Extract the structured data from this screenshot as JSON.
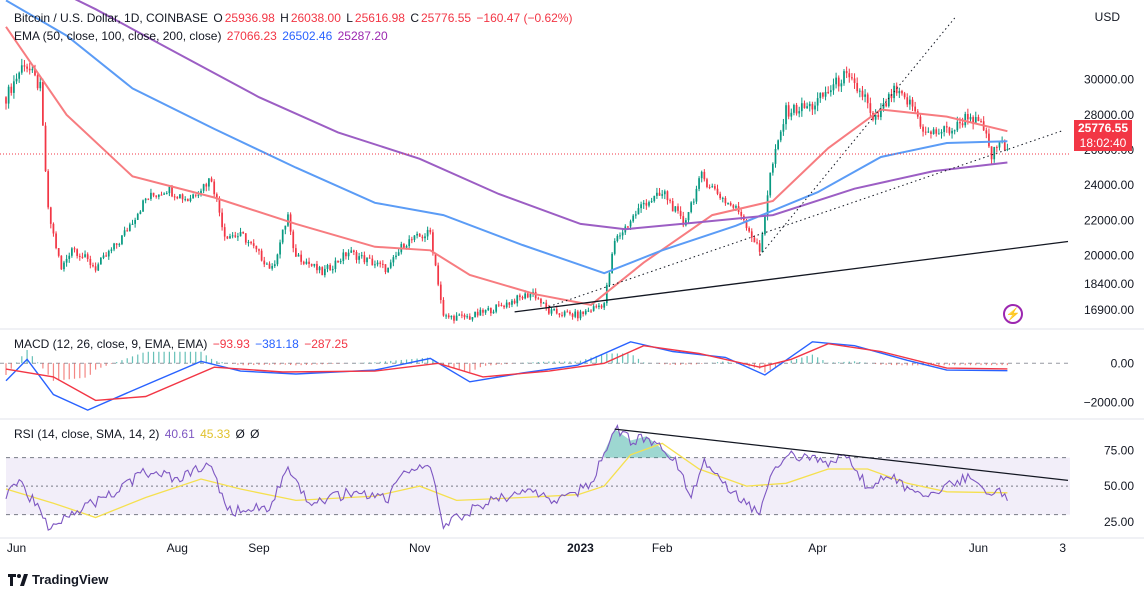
{
  "header": {
    "symbol": "Bitcoin / U.S. Dollar, 1D, COINBASE",
    "o_label": "O",
    "o_val": "25936.98",
    "h_label": "H",
    "h_val": "26038.00",
    "l_label": "L",
    "l_val": "25616.98",
    "c_label": "C",
    "c_val": "25776.55",
    "change": "−160.47 (−0.62%)"
  },
  "ema_legend": {
    "label": "EMA (50, close, 100, close, 200, close)",
    "v50": "27066.23",
    "v100": "26502.46",
    "v200": "25287.20"
  },
  "macd_legend": {
    "label": "MACD (12, 26, close, 9, EMA, EMA)",
    "hist": "−93.93",
    "macd": "−381.18",
    "signal": "−287.25"
  },
  "rsi_legend": {
    "label": "RSI (14, close, SMA, 14, 2)",
    "rsi": "40.61",
    "sma": "45.33",
    "x1": "Ø",
    "x2": "Ø"
  },
  "price_axis": {
    "unit": "USD",
    "current_price": "25776.55",
    "countdown": "18:02:40"
  },
  "branding": {
    "name": "TradingView"
  },
  "colors": {
    "up": "#089981",
    "down": "#f23645",
    "ema50": "#f77c80",
    "ema100": "#5b9cf6",
    "ema200": "#9c5ec4",
    "macd": "#2962ff",
    "signal": "#f23645",
    "rsi": "#7e57c2",
    "rsi_sma": "#f5e04f"
  },
  "chart_data": [
    {
      "type": "candlestick",
      "title": "Bitcoin / U.S. Dollar, 1D, COINBASE",
      "ylabel": "USD",
      "ylim": [
        16000,
        33500
      ],
      "y_ticks": [
        16900,
        18400,
        20000,
        22000,
        24000,
        26000,
        28000,
        30000
      ],
      "y_tick_labels": [
        "16900.00",
        "18400.00",
        "20000.00",
        "22000.00",
        "24000.00",
        "26000.00",
        "28000.00",
        "30000.00"
      ],
      "x_tick_labels": [
        "Jun",
        "Aug",
        "Sep",
        "Nov",
        "2023",
        "Feb",
        "Apr",
        "Jun",
        "3"
      ],
      "close_path": [
        [
          "2022-05-28",
          29000
        ],
        [
          "2022-06-04",
          31000
        ],
        [
          "2022-06-10",
          29500
        ],
        [
          "2022-06-13",
          22500
        ],
        [
          "2022-06-18",
          19200
        ],
        [
          "2022-06-22",
          20500
        ],
        [
          "2022-07-01",
          19300
        ],
        [
          "2022-07-10",
          20800
        ],
        [
          "2022-07-20",
          23200
        ],
        [
          "2022-07-28",
          23800
        ],
        [
          "2022-08-05",
          23200
        ],
        [
          "2022-08-14",
          24400
        ],
        [
          "2022-08-19",
          21200
        ],
        [
          "2022-08-26",
          21100
        ],
        [
          "2022-09-06",
          19200
        ],
        [
          "2022-09-12",
          22300
        ],
        [
          "2022-09-14",
          20200
        ],
        [
          "2022-09-25",
          19000
        ],
        [
          "2022-10-05",
          20200
        ],
        [
          "2022-10-20",
          19200
        ],
        [
          "2022-10-26",
          20700
        ],
        [
          "2022-11-05",
          21300
        ],
        [
          "2022-11-08",
          18500
        ],
        [
          "2022-11-10",
          16500
        ],
        [
          "2022-11-20",
          16500
        ],
        [
          "2022-12-01",
          17100
        ],
        [
          "2022-12-14",
          17900
        ],
        [
          "2022-12-20",
          16800
        ],
        [
          "2022-12-31",
          16600
        ],
        [
          "2023-01-10",
          17300
        ],
        [
          "2023-01-14",
          20800
        ],
        [
          "2023-01-25",
          23000
        ],
        [
          "2023-02-02",
          23500
        ],
        [
          "2023-02-09",
          21800
        ],
        [
          "2023-02-16",
          24500
        ],
        [
          "2023-02-25",
          23100
        ],
        [
          "2023-03-03",
          22400
        ],
        [
          "2023-03-10",
          20200
        ],
        [
          "2023-03-14",
          24600
        ],
        [
          "2023-03-20",
          28200
        ],
        [
          "2023-03-30",
          28500
        ],
        [
          "2023-04-11",
          30200
        ],
        [
          "2023-04-19",
          29000
        ],
        [
          "2023-04-22",
          27500
        ],
        [
          "2023-04-30",
          29300
        ],
        [
          "2023-05-07",
          28500
        ],
        [
          "2023-05-12",
          26900
        ],
        [
          "2023-05-23",
          27200
        ],
        [
          "2023-05-28",
          28000
        ],
        [
          "2023-06-03",
          27200
        ],
        [
          "2023-06-06",
          25600
        ],
        [
          "2023-06-09",
          26500
        ],
        [
          "2023-06-12",
          25776
        ]
      ],
      "series": [
        {
          "name": "EMA 50",
          "path": [
            [
              "2022-05-28",
              33000
            ],
            [
              "2022-06-20",
              28000
            ],
            [
              "2022-07-15",
              24500
            ],
            [
              "2022-08-15",
              23300
            ],
            [
              "2022-09-15",
              21800
            ],
            [
              "2022-10-15",
              20500
            ],
            [
              "2022-11-05",
              20300
            ],
            [
              "2022-11-20",
              18900
            ],
            [
              "2022-12-15",
              17800
            ],
            [
              "2023-01-05",
              17200
            ],
            [
              "2023-01-25",
              19600
            ],
            [
              "2023-02-20",
              22300
            ],
            [
              "2023-03-15",
              23100
            ],
            [
              "2023-04-05",
              26100
            ],
            [
              "2023-04-25",
              28300
            ],
            [
              "2023-05-20",
              27900
            ],
            [
              "2023-06-12",
              27066
            ]
          ]
        },
        {
          "name": "EMA 100",
          "path": [
            [
              "2022-05-28",
              34500
            ],
            [
              "2022-06-20",
              32500
            ],
            [
              "2022-07-15",
              29500
            ],
            [
              "2022-08-15",
              27200
            ],
            [
              "2022-09-15",
              25000
            ],
            [
              "2022-10-15",
              23000
            ],
            [
              "2022-11-10",
              22300
            ],
            [
              "2022-12-10",
              20600
            ],
            [
              "2023-01-10",
              19000
            ],
            [
              "2023-02-01",
              20300
            ],
            [
              "2023-03-01",
              21700
            ],
            [
              "2023-04-01",
              23600
            ],
            [
              "2023-04-25",
              25600
            ],
            [
              "2023-05-20",
              26400
            ],
            [
              "2023-06-12",
              26502
            ]
          ]
        },
        {
          "name": "EMA 200",
          "path": [
            [
              "2022-05-28",
              36500
            ],
            [
              "2022-07-01",
              34000
            ],
            [
              "2022-08-01",
              31500
            ],
            [
              "2022-09-01",
              29000
            ],
            [
              "2022-10-01",
              27000
            ],
            [
              "2022-11-01",
              25500
            ],
            [
              "2022-12-01",
              23500
            ],
            [
              "2023-01-01",
              21800
            ],
            [
              "2023-01-18",
              21500
            ],
            [
              "2023-02-15",
              21900
            ],
            [
              "2023-03-15",
              22300
            ],
            [
              "2023-04-15",
              23800
            ],
            [
              "2023-05-15",
              24800
            ],
            [
              "2023-06-12",
              25287
            ]
          ]
        }
      ],
      "annotations": [
        {
          "name": "support trendline",
          "path": [
            [
              "2022-12-07",
              16800
            ],
            [
              "2023-07-05",
              20800
            ]
          ]
        },
        {
          "name": "dotted trendline 1",
          "path": [
            [
              "2022-12-20",
              17100
            ],
            [
              "2023-07-03",
              27100
            ]
          ]
        },
        {
          "name": "dotted trendline 2",
          "path": [
            [
              "2023-03-10",
              20000
            ],
            [
              "2023-05-23",
              33500
            ]
          ]
        }
      ]
    },
    {
      "type": "line",
      "title": "MACD (12, 26, close, 9, EMA, EMA)",
      "ylim": [
        -2700,
        1600
      ],
      "y_tick_labels": [
        "0.00",
        "−2000.00"
      ],
      "series": [
        {
          "name": "MACD",
          "path": [
            [
              "2022-05-28",
              -900
            ],
            [
              "2022-06-05",
              200
            ],
            [
              "2022-06-15",
              -1600
            ],
            [
              "2022-06-28",
              -2400
            ],
            [
              "2022-07-15",
              -1400
            ],
            [
              "2022-08-10",
              100
            ],
            [
              "2022-08-25",
              -400
            ],
            [
              "2022-09-15",
              -550
            ],
            [
              "2022-10-15",
              -350
            ],
            [
              "2022-11-05",
              250
            ],
            [
              "2022-11-20",
              -950
            ],
            [
              "2022-12-10",
              -500
            ],
            [
              "2022-12-31",
              -100
            ],
            [
              "2023-01-20",
              1100
            ],
            [
              "2023-02-05",
              600
            ],
            [
              "2023-02-25",
              300
            ],
            [
              "2023-03-12",
              -600
            ],
            [
              "2023-03-30",
              1100
            ],
            [
              "2023-04-15",
              900
            ],
            [
              "2023-05-05",
              150
            ],
            [
              "2023-05-20",
              -350
            ],
            [
              "2023-06-12",
              -381
            ]
          ]
        },
        {
          "name": "Signal",
          "path": [
            [
              "2022-05-28",
              -300
            ],
            [
              "2022-06-15",
              -700
            ],
            [
              "2022-07-01",
              -1900
            ],
            [
              "2022-07-20",
              -1700
            ],
            [
              "2022-08-15",
              -200
            ],
            [
              "2022-09-10",
              -450
            ],
            [
              "2022-10-15",
              -400
            ],
            [
              "2022-11-08",
              0
            ],
            [
              "2022-11-25",
              -700
            ],
            [
              "2022-12-20",
              -400
            ],
            [
              "2023-01-10",
              0
            ],
            [
              "2023-01-25",
              900
            ],
            [
              "2023-02-15",
              500
            ],
            [
              "2023-03-10",
              -200
            ],
            [
              "2023-03-22",
              200
            ],
            [
              "2023-04-05",
              1000
            ],
            [
              "2023-04-25",
              600
            ],
            [
              "2023-05-20",
              -250
            ],
            [
              "2023-06-12",
              -287
            ]
          ]
        }
      ]
    },
    {
      "type": "line",
      "title": "RSI (14, close, SMA, 14, 2)",
      "ylim": [
        15,
        95
      ],
      "y_tick_labels": [
        "75.00",
        "50.00",
        "25.00"
      ],
      "bands": [
        30,
        50,
        70
      ],
      "series": [
        {
          "name": "RSI",
          "path": [
            [
              "2022-05-28",
              45
            ],
            [
              "2022-06-02",
              55
            ],
            [
              "2022-06-13",
              22
            ],
            [
              "2022-06-20",
              30
            ],
            [
              "2022-07-05",
              42
            ],
            [
              "2022-07-20",
              60
            ],
            [
              "2022-08-01",
              55
            ],
            [
              "2022-08-14",
              65
            ],
            [
              "2022-08-20",
              32
            ],
            [
              "2022-09-05",
              36
            ],
            [
              "2022-09-12",
              60
            ],
            [
              "2022-09-20",
              38
            ],
            [
              "2022-10-05",
              45
            ],
            [
              "2022-10-20",
              42
            ],
            [
              "2022-10-27",
              62
            ],
            [
              "2022-11-05",
              63
            ],
            [
              "2022-11-10",
              22
            ],
            [
              "2022-11-25",
              38
            ],
            [
              "2022-12-10",
              46
            ],
            [
              "2022-12-25",
              40
            ],
            [
              "2023-01-05",
              52
            ],
            [
              "2023-01-10",
              74
            ],
            [
              "2023-01-14",
              90
            ],
            [
              "2023-01-20",
              82
            ],
            [
              "2023-01-26",
              85
            ],
            [
              "2023-02-05",
              70
            ],
            [
              "2023-02-12",
              45
            ],
            [
              "2023-02-17",
              68
            ],
            [
              "2023-02-25",
              52
            ],
            [
              "2023-03-10",
              30
            ],
            [
              "2023-03-14",
              60
            ],
            [
              "2023-03-20",
              72
            ],
            [
              "2023-04-05",
              66
            ],
            [
              "2023-04-12",
              72
            ],
            [
              "2023-04-20",
              48
            ],
            [
              "2023-04-27",
              60
            ],
            [
              "2023-05-10",
              42
            ],
            [
              "2023-05-20",
              50
            ],
            [
              "2023-05-28",
              56
            ],
            [
              "2023-06-04",
              44
            ],
            [
              "2023-06-08",
              50
            ],
            [
              "2023-06-12",
              40.61
            ]
          ]
        },
        {
          "name": "RSI SMA",
          "path": [
            [
              "2022-05-28",
              48
            ],
            [
              "2022-06-15",
              38
            ],
            [
              "2022-07-01",
              28
            ],
            [
              "2022-07-20",
              42
            ],
            [
              "2022-08-10",
              55
            ],
            [
              "2022-08-25",
              48
            ],
            [
              "2022-09-15",
              40
            ],
            [
              "2022-10-15",
              43
            ],
            [
              "2022-11-01",
              50
            ],
            [
              "2022-11-15",
              40
            ],
            [
              "2022-12-10",
              42
            ],
            [
              "2022-12-31",
              44
            ],
            [
              "2023-01-10",
              50
            ],
            [
              "2023-01-20",
              72
            ],
            [
              "2023-02-01",
              80
            ],
            [
              "2023-02-15",
              62
            ],
            [
              "2023-03-05",
              50
            ],
            [
              "2023-03-20",
              52
            ],
            [
              "2023-04-05",
              62
            ],
            [
              "2023-04-20",
              62
            ],
            [
              "2023-05-05",
              52
            ],
            [
              "2023-05-20",
              46
            ],
            [
              "2023-06-12",
              45.33
            ]
          ]
        }
      ],
      "annotations": [
        {
          "name": "RSI divergence trendline",
          "path": [
            [
              "2023-01-14",
              90
            ],
            [
              "2023-07-05",
              54
            ]
          ]
        }
      ]
    }
  ]
}
